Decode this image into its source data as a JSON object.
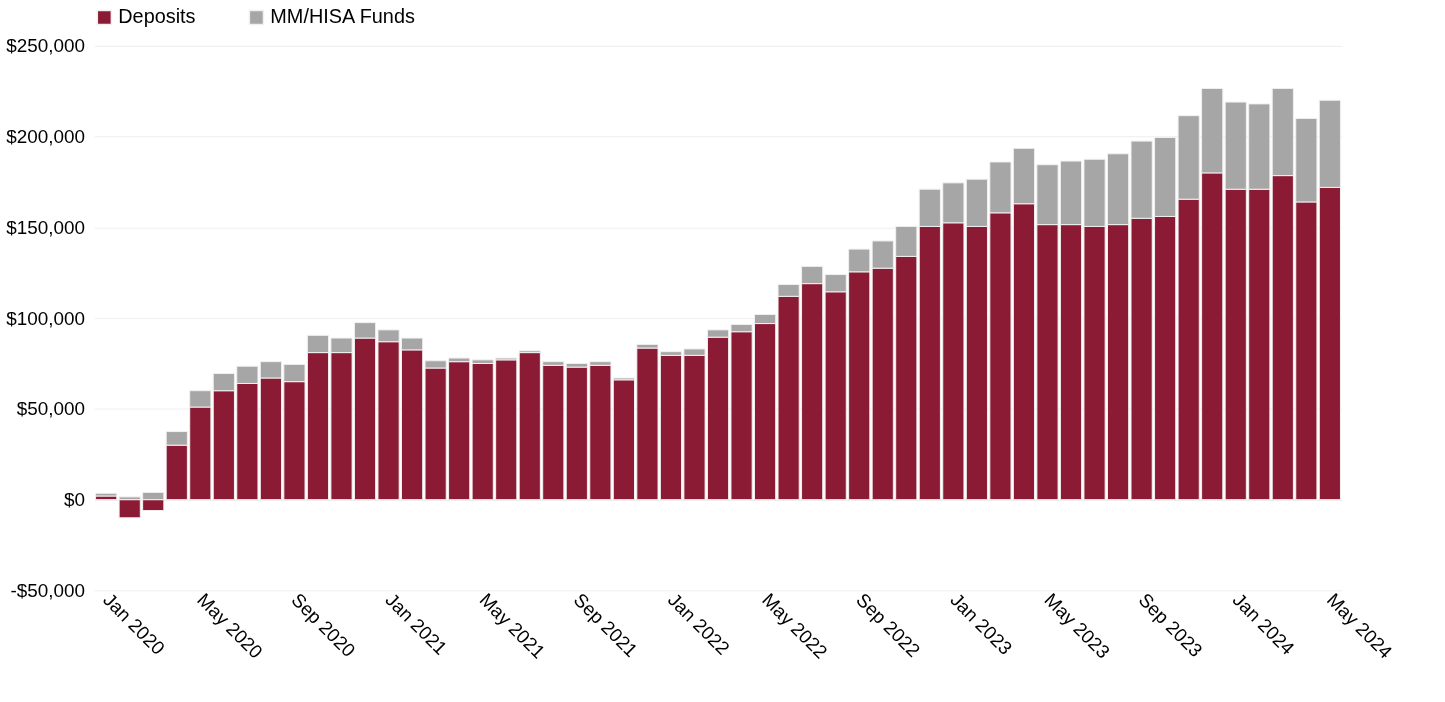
{
  "chart_data": {
    "type": "bar",
    "stacked": true,
    "categories": [
      "Jan 2020",
      null,
      null,
      null,
      "May 2020",
      null,
      null,
      null,
      "Sep 2020",
      null,
      null,
      null,
      "Jan 2021",
      null,
      null,
      null,
      "May 2021",
      null,
      null,
      null,
      "Sep 2021",
      null,
      null,
      null,
      "Jan 2022",
      null,
      null,
      null,
      "May 2022",
      null,
      null,
      null,
      "Sep 2022",
      null,
      null,
      null,
      "Jan 2023",
      null,
      null,
      null,
      "May 2023",
      null,
      null,
      null,
      "Sep 2023",
      null,
      null,
      null,
      "Jan 2024",
      null,
      null,
      null,
      "May 2024"
    ],
    "series": [
      {
        "name": "Deposits",
        "color": "#8b1a34",
        "values": [
          2000,
          -10000,
          -6000,
          30000,
          51000,
          60000,
          64000,
          67000,
          65000,
          81000,
          81000,
          89000,
          87000,
          82500,
          72500,
          76000,
          75000,
          77000,
          81000,
          74000,
          73000,
          74000,
          66000,
          83500,
          79500,
          79500,
          89500,
          92500,
          97000,
          112000,
          119000,
          114500,
          125500,
          127500,
          134000,
          150500,
          152500,
          150500,
          158000,
          163000,
          151500,
          151500,
          150500,
          151500,
          155000,
          156000,
          165500,
          180000,
          171000,
          171000,
          178500,
          164000,
          172000
        ]
      },
      {
        "name": "MM/HISA Funds",
        "color": "#a6a6a6",
        "values": [
          1500,
          1500,
          4000,
          7500,
          9000,
          9500,
          9500,
          9000,
          9500,
          9500,
          8000,
          8500,
          6500,
          6500,
          4000,
          2000,
          2000,
          1000,
          1000,
          2000,
          2000,
          2000,
          1000,
          2000,
          2000,
          3500,
          4000,
          4000,
          5000,
          6500,
          9500,
          9500,
          12500,
          15000,
          16500,
          20500,
          22000,
          26000,
          28000,
          30500,
          33000,
          35000,
          37000,
          39000,
          42500,
          43500,
          46000,
          46500,
          48000,
          47000,
          48000,
          46000,
          48000
        ]
      }
    ],
    "ylim": [
      -50000,
      250000
    ],
    "yticks": [
      {
        "value": -50000,
        "label": "-$50,000"
      },
      {
        "value": 0,
        "label": "$0"
      },
      {
        "value": 50000,
        "label": "$50,000"
      },
      {
        "value": 100000,
        "label": "$100,000"
      },
      {
        "value": 150000,
        "label": "$150,000"
      },
      {
        "value": 200000,
        "label": "$200,000"
      },
      {
        "value": 250000,
        "label": "$250,000"
      }
    ],
    "grid": "y",
    "legend": "top"
  }
}
